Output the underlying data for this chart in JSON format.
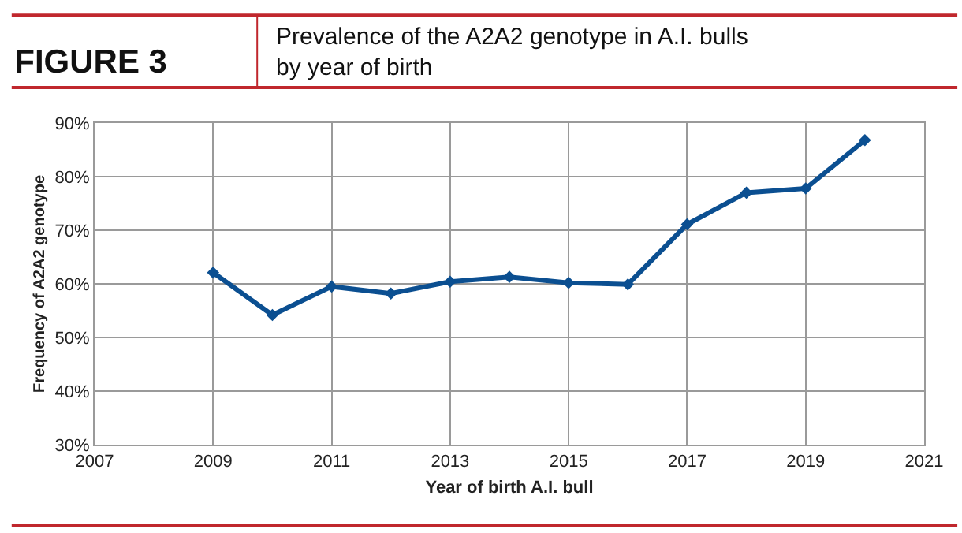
{
  "chart_data": {
    "type": "line",
    "title": "FIGURE 3",
    "subtitle": "Prevalence of the A2A2 genotype in A.I. bulls\nby year of birth",
    "xlabel": "Year of birth A.I. bull",
    "ylabel": "Frequency of A2A2 genotype",
    "x": [
      2009,
      2010,
      2011,
      2012,
      2013,
      2014,
      2015,
      2016,
      2017,
      2018,
      2019,
      2020
    ],
    "series": [
      {
        "color": "#0b4f91",
        "values": [
          62.1,
          54.2,
          59.5,
          58.2,
          60.4,
          61.3,
          60.2,
          59.9,
          71.1,
          77.0,
          77.8,
          86.8
        ]
      }
    ],
    "xlim": [
      2007,
      2021
    ],
    "xticks": [
      2007,
      2009,
      2011,
      2013,
      2015,
      2017,
      2019,
      2021
    ],
    "ylim": [
      30,
      90
    ],
    "yticks": [
      {
        "value": 30,
        "label": "30%"
      },
      {
        "value": 40,
        "label": "40%"
      },
      {
        "value": 50,
        "label": "50%"
      },
      {
        "value": 60,
        "label": "60%"
      },
      {
        "value": 70,
        "label": "70%"
      },
      {
        "value": 80,
        "label": "80%"
      },
      {
        "value": 90,
        "label": "90%"
      }
    ],
    "grid": true,
    "marker": "diamond",
    "line_style": "solid"
  }
}
